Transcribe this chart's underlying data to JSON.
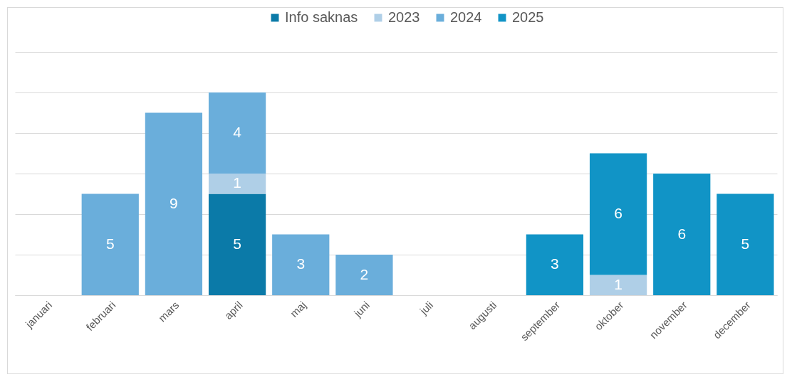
{
  "chart_data": {
    "type": "bar",
    "stacked": true,
    "categories": [
      "januari",
      "februari",
      "mars",
      "april",
      "maj",
      "juni",
      "juli",
      "augusti",
      "september",
      "oktober",
      "november",
      "december"
    ],
    "series": [
      {
        "name": "Info saknas",
        "color": "#0b7aa8",
        "values": [
          null,
          null,
          null,
          5,
          null,
          null,
          null,
          null,
          null,
          null,
          null,
          null
        ]
      },
      {
        "name": "2023",
        "color": "#afcfe7",
        "values": [
          null,
          null,
          null,
          1,
          null,
          null,
          null,
          null,
          null,
          1,
          null,
          null
        ]
      },
      {
        "name": "2024",
        "color": "#6aaedb",
        "values": [
          null,
          5,
          9,
          4,
          3,
          2,
          null,
          null,
          null,
          null,
          null,
          null
        ]
      },
      {
        "name": "2025",
        "color": "#1194c6",
        "values": [
          null,
          null,
          null,
          null,
          null,
          null,
          null,
          null,
          3,
          6,
          6,
          5
        ]
      }
    ],
    "ylim": [
      0,
      12
    ],
    "yticks": [
      {
        "value": 0,
        "label": null
      },
      {
        "value": 2,
        "label": null
      },
      {
        "value": 4,
        "label": null
      },
      {
        "value": 6,
        "label": null
      },
      {
        "value": 8,
        "label": null
      },
      {
        "value": 10,
        "label": null
      },
      {
        "value": 12,
        "label": null
      }
    ],
    "tick_labels": "x",
    "grid": "y",
    "legend": "top",
    "data_labels": true
  }
}
